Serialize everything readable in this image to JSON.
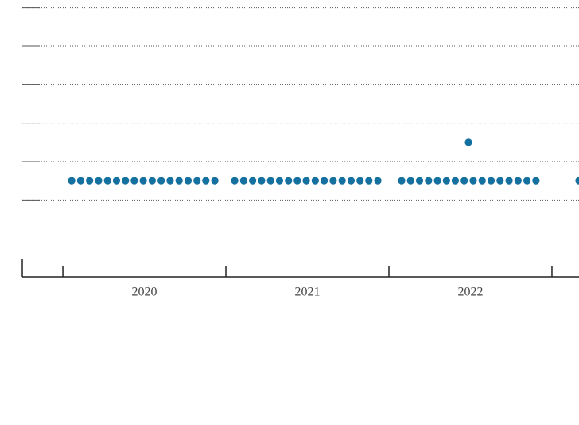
{
  "chart_data": {
    "type": "scatter",
    "series": [
      {
        "color": "#14709f",
        "x": [
          2020.054,
          2020.109,
          2020.164,
          2020.219,
          2020.274,
          2020.329,
          2020.384,
          2020.438,
          2020.493,
          2020.548,
          2020.603,
          2020.658,
          2020.713,
          2020.768,
          2020.823,
          2020.877,
          2020.932,
          2021.054,
          2021.109,
          2021.164,
          2021.219,
          2021.274,
          2021.329,
          2021.384,
          2021.438,
          2021.493,
          2021.548,
          2021.603,
          2021.658,
          2021.713,
          2021.768,
          2021.823,
          2021.877,
          2021.932,
          2022.078,
          2022.133,
          2022.188,
          2022.243,
          2022.298,
          2022.353,
          2022.407,
          2022.462,
          2022.517,
          2022.572,
          2022.627,
          2022.682,
          2022.737,
          2022.792,
          2022.847,
          2022.902,
          2022.488,
          2023.166
        ],
        "values": [
          0.5,
          0.5,
          0.5,
          0.5,
          0.5,
          0.5,
          0.5,
          0.5,
          0.5,
          0.5,
          0.5,
          0.5,
          0.5,
          0.5,
          0.5,
          0.5,
          0.5,
          0.5,
          0.5,
          0.5,
          0.5,
          0.5,
          0.5,
          0.5,
          0.5,
          0.5,
          0.5,
          0.5,
          0.5,
          0.5,
          0.5,
          0.5,
          0.5,
          0.5,
          0.5,
          0.5,
          0.5,
          0.5,
          0.5,
          0.5,
          0.5,
          0.5,
          0.5,
          0.5,
          0.5,
          0.5,
          0.5,
          0.5,
          0.5,
          0.5,
          1.5,
          0.5
        ]
      }
    ],
    "xlim": [
      2019.751,
      2023.166
    ],
    "xticks": [
      2020,
      2021,
      2022,
      2023
    ],
    "xlabels": [
      {
        "value": 2020.5,
        "label": "2020"
      },
      {
        "value": 2021.5,
        "label": "2021"
      },
      {
        "value": 2022.5,
        "label": "2022"
      }
    ],
    "ylim": [
      -2,
      5.2
    ],
    "yticks": [
      0,
      1,
      2,
      3,
      4,
      5
    ],
    "grid": true
  }
}
